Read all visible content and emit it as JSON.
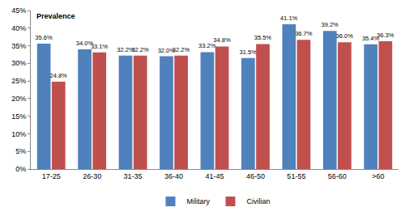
{
  "chart_data": {
    "type": "bar",
    "ylabel": "Prevalence",
    "categories": [
      "17-25",
      "26-30",
      "31-35",
      "36-40",
      "41-45",
      "46-50",
      "51-55",
      "56-60",
      ">60"
    ],
    "series": [
      {
        "name": "Military",
        "color": "#4f81bd",
        "values": [
          35.6,
          34.0,
          32.2,
          32.0,
          33.2,
          31.5,
          41.1,
          39.2,
          35.4
        ],
        "value_labels": [
          "35.6%",
          "34.0%",
          "32.2%",
          "32.0%",
          "33.2%",
          "31.5%",
          "41.1%",
          "39.2%",
          "35.4%"
        ]
      },
      {
        "name": "Civilian",
        "color": "#c0504d",
        "values": [
          24.8,
          33.1,
          32.2,
          32.2,
          34.8,
          35.5,
          36.7,
          36.0,
          36.3
        ],
        "value_labels": [
          "24.8%",
          "33.1%",
          "32.2%",
          "32.2%",
          "34.8%",
          "35.5%",
          "36.7%",
          "36.0%",
          "36.3%"
        ]
      }
    ],
    "ylim": [
      0,
      45
    ],
    "yticks": [
      {
        "value": 0,
        "label": "0%"
      },
      {
        "value": 5,
        "label": "5%"
      },
      {
        "value": 10,
        "label": "10%"
      },
      {
        "value": 15,
        "label": "15%"
      },
      {
        "value": 20,
        "label": "20%"
      },
      {
        "value": 25,
        "label": "25%"
      },
      {
        "value": 30,
        "label": "30%"
      },
      {
        "value": 35,
        "label": "35%"
      },
      {
        "value": 40,
        "label": "40%"
      },
      {
        "value": 45,
        "label": "45%"
      }
    ],
    "grid": false,
    "legend": "bottom",
    "data_labels": true
  }
}
